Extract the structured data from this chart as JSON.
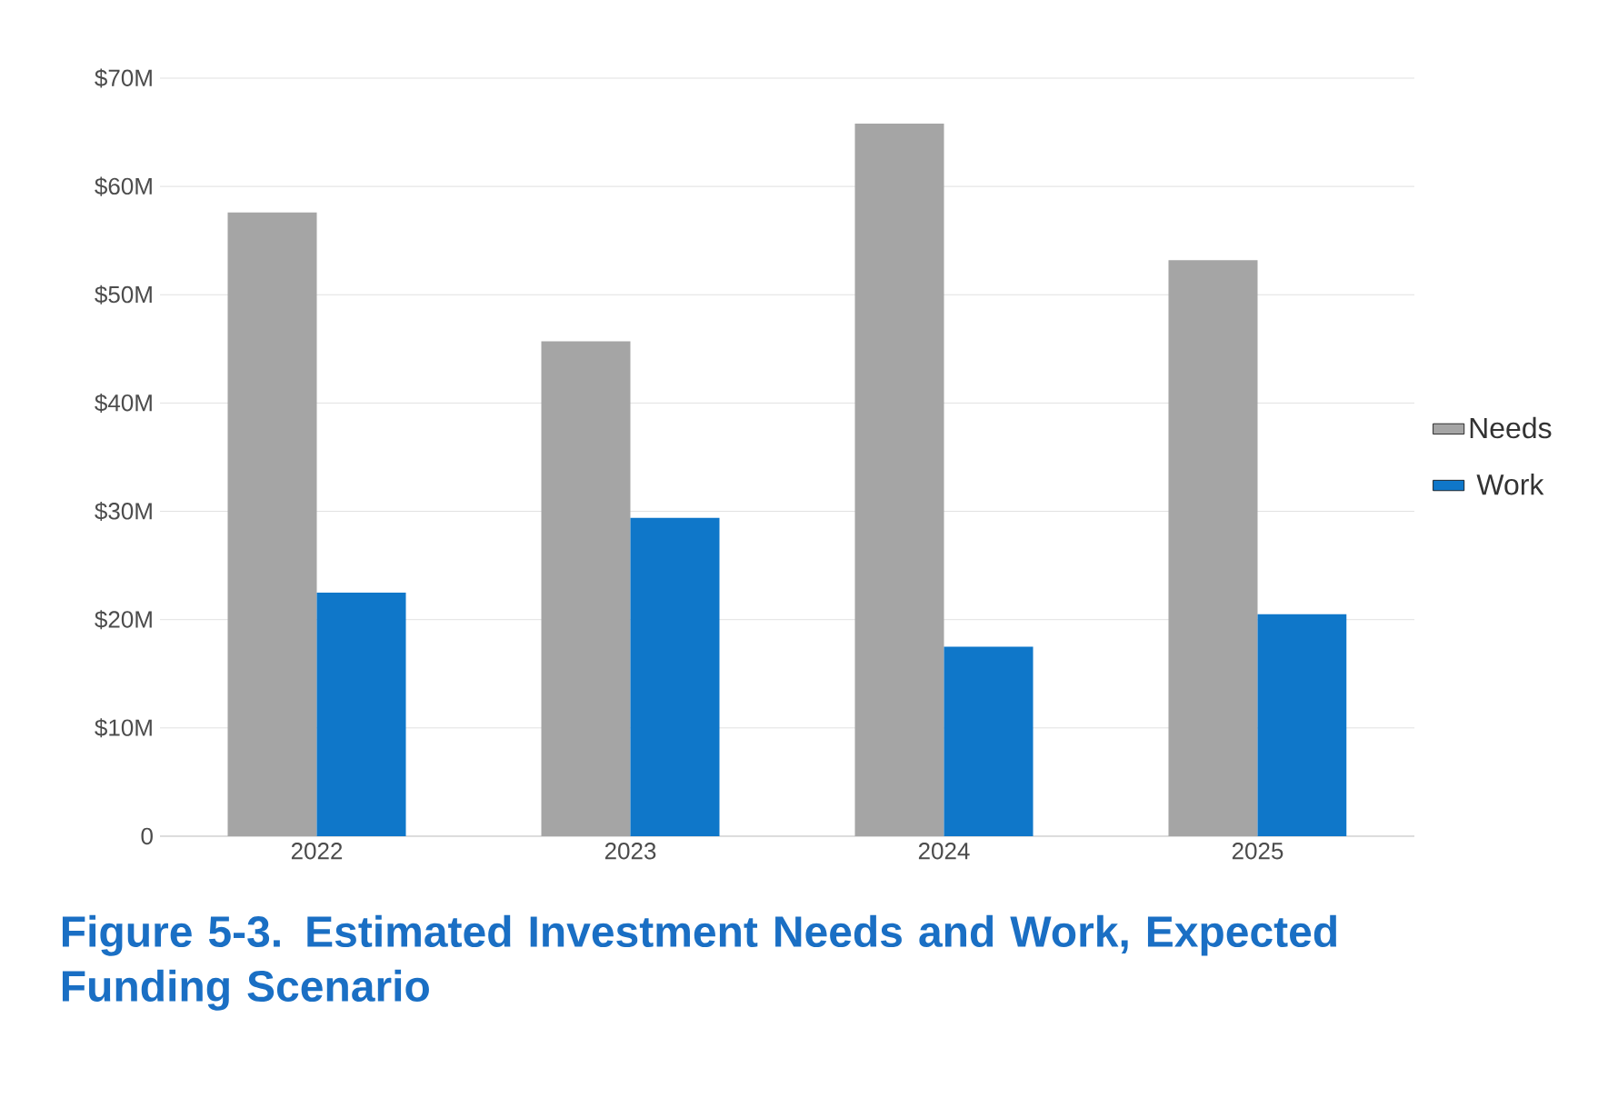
{
  "chart_data": {
    "type": "bar",
    "title": "Figure 5-3. Estimated Investment Needs and Work, Expected Funding Scenario",
    "categories": [
      "2022",
      "2023",
      "2024",
      "2025"
    ],
    "series": [
      {
        "name": "Needs",
        "color": "#a5a5a5",
        "values": [
          57.6,
          45.7,
          65.8,
          53.2
        ]
      },
      {
        "name": "Work",
        "color": "#0f77c9",
        "values": [
          22.5,
          29.4,
          17.5,
          20.5
        ]
      }
    ],
    "ylim": [
      0,
      70
    ],
    "yticks": [
      0,
      {
        "value": 10,
        "label": "$10M"
      },
      {
        "value": 20,
        "label": "$20M"
      },
      {
        "value": 30,
        "label": "$30M"
      },
      {
        "value": 40,
        "label": "$40M"
      },
      {
        "value": 50,
        "label": "$50M"
      },
      {
        "value": 60,
        "label": "$60M"
      },
      {
        "value": 70,
        "label": "$70M"
      }
    ],
    "grid": "y",
    "legend": "right"
  }
}
